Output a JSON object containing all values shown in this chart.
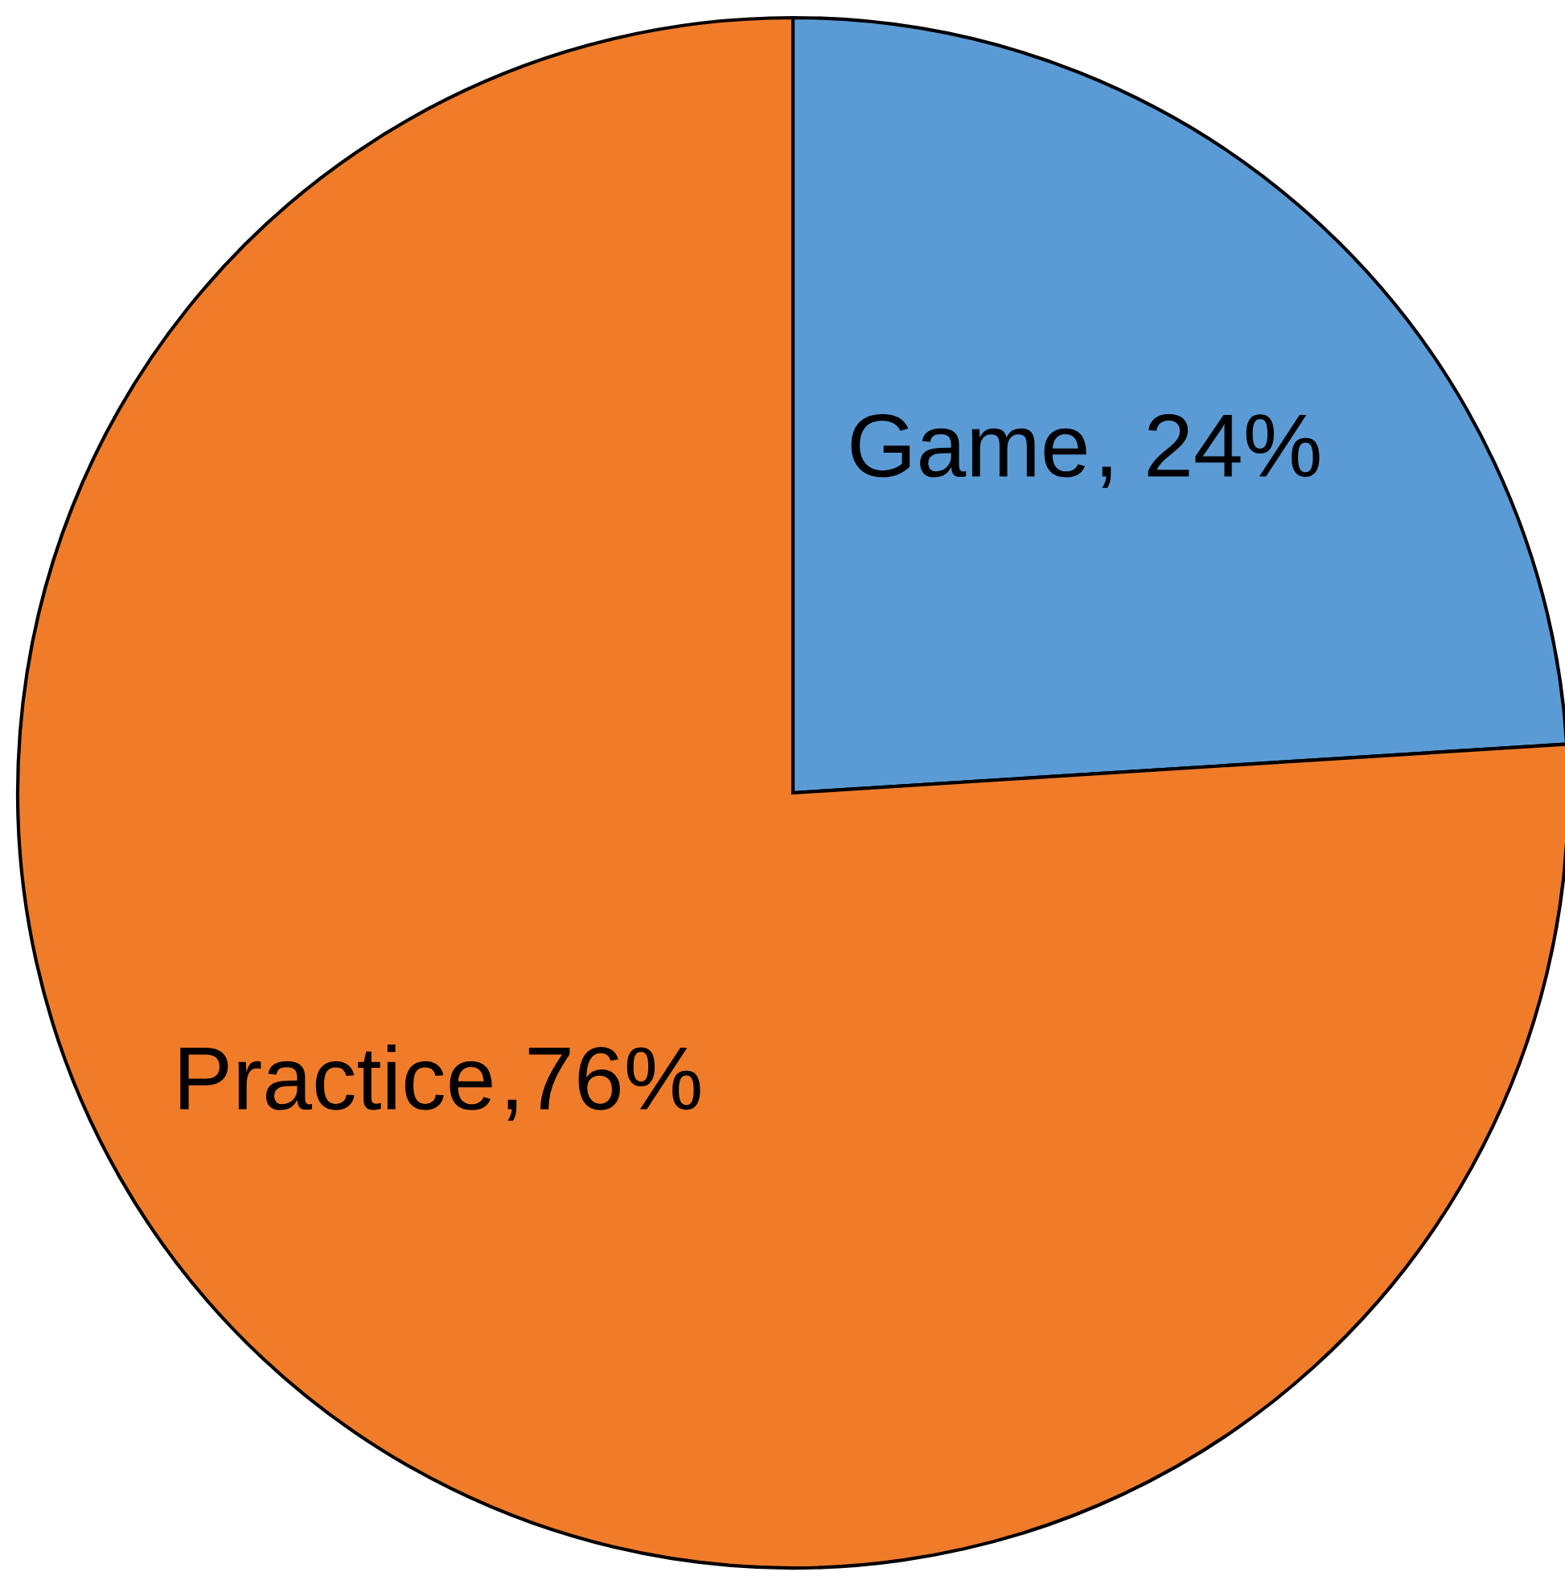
{
  "chart_data": {
    "type": "pie",
    "categories": [
      "Game",
      "Practice"
    ],
    "values": [
      24,
      76
    ],
    "colors": [
      "#5b9bd5",
      "#f07c2a"
    ],
    "value_labels": [
      ", 24%",
      ",76%"
    ]
  }
}
